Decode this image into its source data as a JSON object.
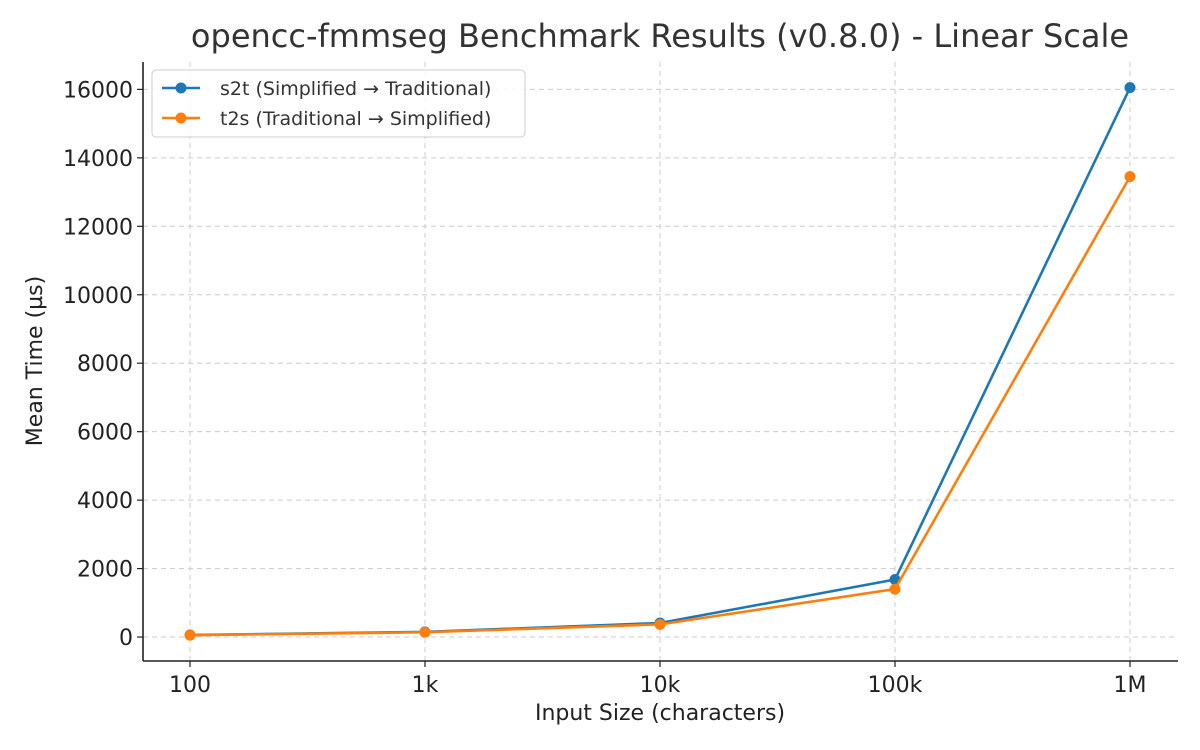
{
  "chart_data": {
    "type": "line",
    "title": "opencc-fmmseg Benchmark Results (v0.8.0) - Linear Scale",
    "xlabel": "Input Size (characters)",
    "ylabel": "Mean Time (µs)",
    "categories": [
      "100",
      "1k",
      "10k",
      "100k",
      "1M"
    ],
    "yticks": [
      0,
      2000,
      4000,
      6000,
      8000,
      10000,
      12000,
      14000,
      16000
    ],
    "ylim": [
      -700,
      16800
    ],
    "grid": true,
    "legend_position": "top-left",
    "series": [
      {
        "name": "s2t (Simplified → Traditional)",
        "color": "#1f77b4",
        "values": [
          60,
          150,
          410,
          1680,
          16050
        ]
      },
      {
        "name": "t2s (Traditional → Simplified)",
        "color": "#ff7f0e",
        "values": [
          55,
          140,
          370,
          1400,
          13450
        ]
      }
    ]
  }
}
